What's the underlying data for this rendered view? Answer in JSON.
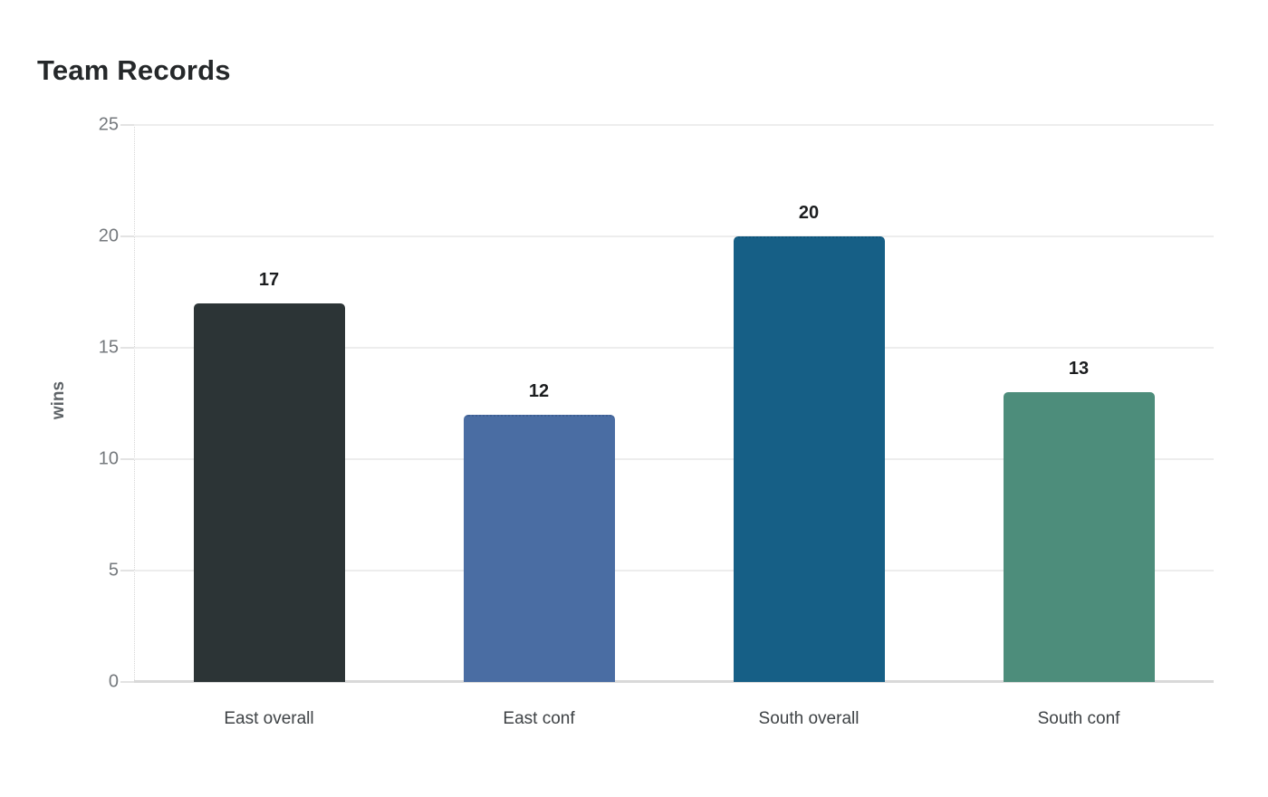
{
  "page": {
    "background": "#ffffff"
  },
  "chart_data": {
    "type": "bar",
    "title": "Team Records",
    "categories": [
      "East overall",
      "East conf",
      "South overall",
      "South conf"
    ],
    "values": [
      17,
      12,
      20,
      13
    ],
    "value_labels": [
      "17",
      "12",
      "20",
      "13"
    ],
    "bar_colors": [
      "#2c3436",
      "#4a6da3",
      "#165f86",
      "#4d8d7b"
    ],
    "bar_top_borders": [
      null,
      "#3f5f93",
      "#0f547a",
      null
    ],
    "xlabel": "",
    "ylabel": "wins",
    "ylim": [
      0,
      25
    ],
    "yticks": [
      "0",
      "5",
      "10",
      "15",
      "20",
      "25"
    ],
    "ytick_values": [
      0,
      5,
      10,
      15,
      20,
      25
    ],
    "grid": "horizontal",
    "legend": "none",
    "colors": {
      "title_text": "#25282a",
      "ytick_text": "#75797d",
      "xtick_text": "#3e4245",
      "value_label_text": "#1b1d1f",
      "axis_title_text": "#5d6266",
      "gridline": "#ededed",
      "baseline": "#d9d9d9"
    }
  }
}
